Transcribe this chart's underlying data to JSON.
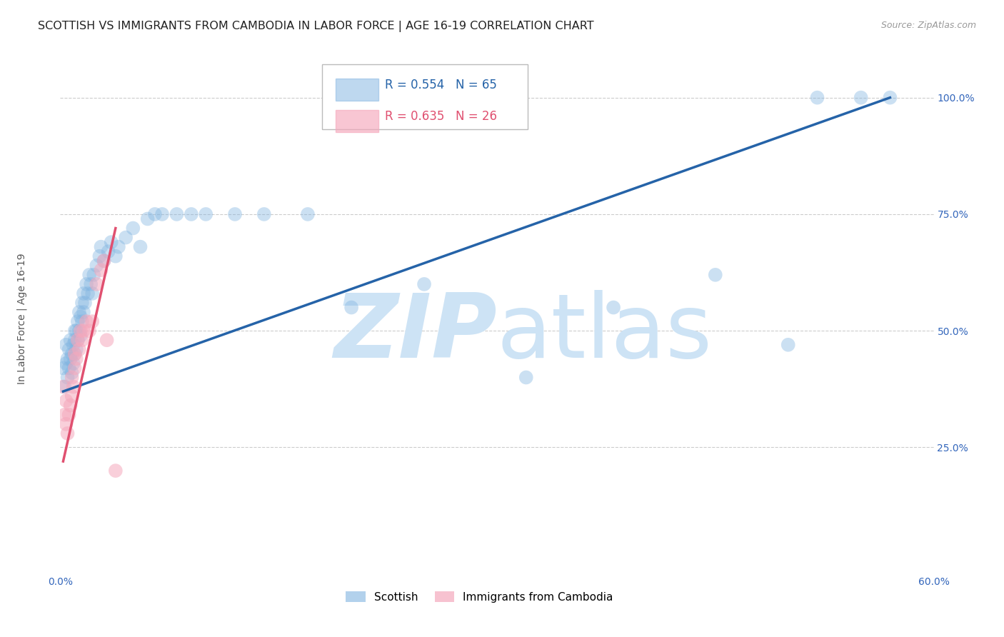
{
  "title": "SCOTTISH VS IMMIGRANTS FROM CAMBODIA IN LABOR FORCE | AGE 16-19 CORRELATION CHART",
  "source": "Source: ZipAtlas.com",
  "ylabel": "In Labor Force | Age 16-19",
  "xlim": [
    0.0,
    0.6
  ],
  "ylim": [
    -0.02,
    1.1
  ],
  "blue_R": 0.554,
  "blue_N": 65,
  "pink_R": 0.635,
  "pink_N": 26,
  "blue_color": "#7fb3e0",
  "pink_color": "#f5a8bc",
  "blue_line_color": "#2563a8",
  "pink_line_color": "#e05070",
  "grid_color": "#cccccc",
  "watermark_color": "#cde3f5",
  "tick_color": "#3366bb",
  "blue_scatter_x": [
    0.002,
    0.003,
    0.004,
    0.004,
    0.005,
    0.005,
    0.006,
    0.006,
    0.007,
    0.007,
    0.008,
    0.008,
    0.009,
    0.009,
    0.01,
    0.01,
    0.01,
    0.011,
    0.011,
    0.012,
    0.012,
    0.013,
    0.013,
    0.014,
    0.014,
    0.015,
    0.015,
    0.016,
    0.016,
    0.017,
    0.018,
    0.019,
    0.02,
    0.021,
    0.022,
    0.023,
    0.025,
    0.027,
    0.028,
    0.03,
    0.033,
    0.035,
    0.038,
    0.04,
    0.045,
    0.05,
    0.055,
    0.06,
    0.065,
    0.07,
    0.08,
    0.09,
    0.1,
    0.12,
    0.14,
    0.17,
    0.2,
    0.25,
    0.32,
    0.38,
    0.45,
    0.5,
    0.52,
    0.55,
    0.57
  ],
  "blue_scatter_y": [
    0.42,
    0.38,
    0.43,
    0.47,
    0.4,
    0.44,
    0.42,
    0.46,
    0.44,
    0.48,
    0.41,
    0.45,
    0.43,
    0.47,
    0.45,
    0.48,
    0.5,
    0.46,
    0.5,
    0.48,
    0.52,
    0.5,
    0.54,
    0.49,
    0.53,
    0.52,
    0.56,
    0.54,
    0.58,
    0.56,
    0.6,
    0.58,
    0.62,
    0.6,
    0.58,
    0.62,
    0.64,
    0.66,
    0.68,
    0.65,
    0.67,
    0.69,
    0.66,
    0.68,
    0.7,
    0.72,
    0.68,
    0.74,
    0.75,
    0.75,
    0.75,
    0.75,
    0.75,
    0.75,
    0.75,
    0.75,
    0.55,
    0.6,
    0.4,
    0.55,
    0.62,
    0.47,
    1.0,
    1.0,
    1.0
  ],
  "pink_scatter_x": [
    0.002,
    0.003,
    0.004,
    0.004,
    0.005,
    0.006,
    0.007,
    0.008,
    0.008,
    0.009,
    0.01,
    0.01,
    0.011,
    0.012,
    0.013,
    0.014,
    0.015,
    0.016,
    0.018,
    0.02,
    0.022,
    0.025,
    0.028,
    0.03,
    0.032,
    0.038
  ],
  "pink_scatter_y": [
    0.38,
    0.32,
    0.3,
    0.35,
    0.28,
    0.32,
    0.34,
    0.36,
    0.4,
    0.38,
    0.42,
    0.45,
    0.44,
    0.48,
    0.46,
    0.5,
    0.48,
    0.5,
    0.52,
    0.5,
    0.52,
    0.6,
    0.63,
    0.65,
    0.48,
    0.2
  ],
  "blue_line_x": [
    0.002,
    0.57
  ],
  "blue_line_y": [
    0.37,
    1.0
  ],
  "pink_line_x": [
    0.002,
    0.038
  ],
  "pink_line_y": [
    0.22,
    0.72
  ],
  "title_fontsize": 11.5,
  "source_fontsize": 9,
  "axis_label_fontsize": 10,
  "tick_fontsize": 10,
  "legend_fontsize": 12
}
